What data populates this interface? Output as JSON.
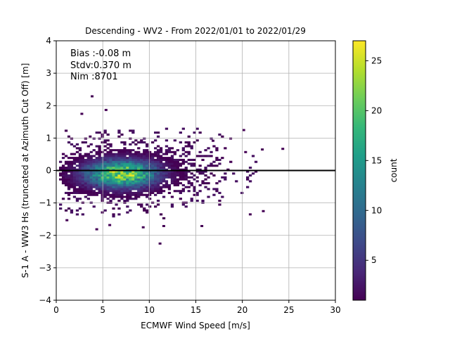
{
  "chart_data": {
    "type": "heatmap",
    "title": "Descending - WV2 - From 2022/01/01 to 2022/01/29",
    "xlabel": "ECMWF Wind Speed [m/s]",
    "ylabel": "S-1 A - WW3 Hs (truncated at Azimuth Cut Off) [m]",
    "xlim": [
      0,
      30
    ],
    "ylim": [
      -4,
      4
    ],
    "xticks": [
      "0",
      "5",
      "10",
      "15",
      "20",
      "25",
      "30"
    ],
    "yticks": [
      "−4",
      "−3",
      "−2",
      "−1",
      "0",
      "1",
      "2",
      "3",
      "4"
    ],
    "grid": true,
    "reference_line": {
      "y": 0,
      "color": "#000000"
    },
    "stats": {
      "bias": "Bias :-0.08 m",
      "stdv": "Stdv:0.370 m",
      "nim": "Nim :8701"
    },
    "colorbar": {
      "label": "count",
      "min": 1,
      "max": 27,
      "ticks": [
        "5",
        "10",
        "15",
        "20",
        "25"
      ],
      "colormap": "viridis"
    },
    "density_model": {
      "center_x": 7.0,
      "center_y": -0.1,
      "peak_count": 27,
      "spread_x": 2.6,
      "spread_y": 0.28
    },
    "outliers": [
      [
        3.7,
        2.32
      ],
      [
        5.2,
        1.9
      ],
      [
        2.6,
        1.78
      ],
      [
        11.0,
        -2.22
      ],
      [
        20.0,
        1.28
      ],
      [
        24.2,
        0.7
      ],
      [
        22.1,
        -1.22
      ],
      [
        20.7,
        -1.32
      ],
      [
        15.5,
        -1.68
      ],
      [
        9.2,
        -1.72
      ],
      [
        11.4,
        -1.68
      ],
      [
        5.6,
        -1.65
      ],
      [
        4.2,
        -1.78
      ],
      [
        1.0,
        -1.5
      ],
      [
        22.0,
        0.68
      ],
      [
        18.6,
        1.02
      ],
      [
        20.2,
        0.6
      ],
      [
        16.7,
        0.95
      ],
      [
        1.2,
        1.08
      ],
      [
        3.5,
        1.08
      ]
    ]
  }
}
